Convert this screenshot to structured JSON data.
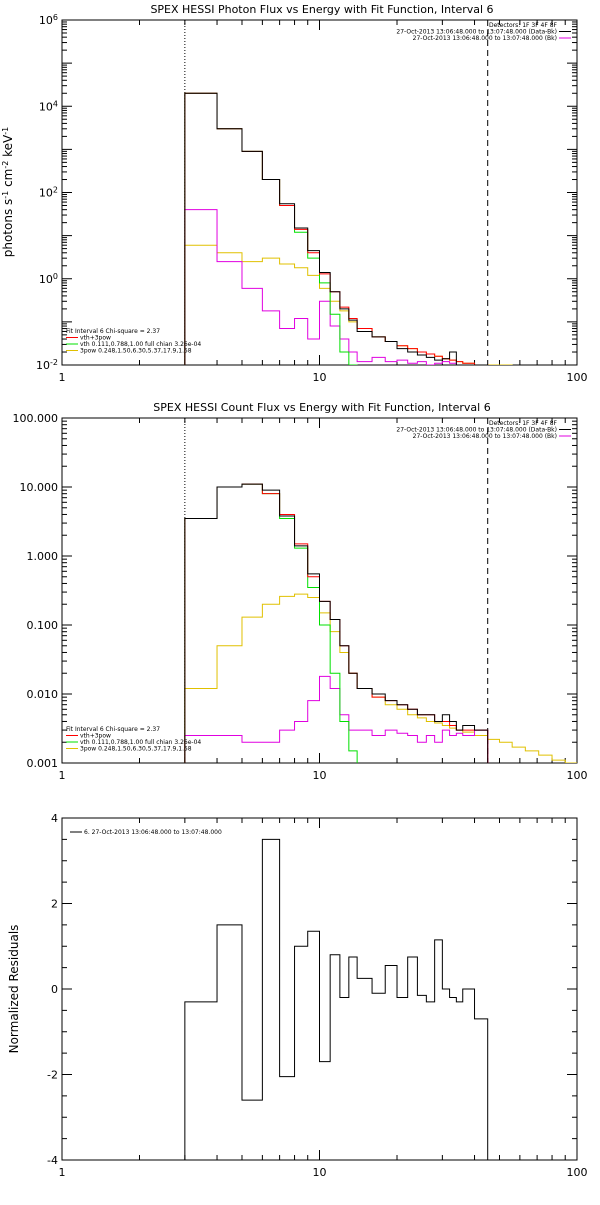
{
  "chart_data": [
    {
      "type": "line",
      "title": "SPEX HESSI Photon Flux vs Energy with Fit Function, Interval 6",
      "ylabel": "photons s$^{-1}$ cm$^{-2}$ keV$^{-1}$",
      "xlabel": "",
      "xscale": "log",
      "yscale": "log",
      "xlim": [
        1,
        100
      ],
      "ylim": [
        0.01,
        1000000
      ],
      "x_ticks": [
        "1",
        "10",
        "100"
      ],
      "y_ticks": [
        "10$^{-2}$",
        "10$^{0}$",
        "10$^{2}$",
        "10$^{4}$",
        "10$^{6}$"
      ],
      "y_tick_values": [
        0.01,
        1,
        100,
        10000,
        1000000
      ],
      "vlines": [
        {
          "x": 3,
          "style": "dotted"
        },
        {
          "x": 45,
          "style": "dashed"
        }
      ],
      "legend_top": {
        "lines": [
          "Detectors: 1F 3F 4F 8F",
          "27-Oct-2013 13:06:48.000 to 13:07:48.000 (Data-Bk)",
          "27-Oct-2013 13:06:48.000 to 13:07:48.000 (Bk)"
        ],
        "colors": [
          "#000000",
          "#000000",
          "#e000e0"
        ]
      },
      "legend_fit": {
        "header": "Fit Interval 6   Chi-square = 2.37",
        "lines": [
          "vth+3pow",
          "vth 0.111,0.788,1.00  full chian 3.26e-04",
          "3pow 0.248,1.50,6.30,5.37,17.9,1.58"
        ],
        "colors": [
          "#ff0000",
          "#00e000",
          "#e0c000"
        ]
      },
      "edges": [
        3,
        4,
        5,
        6,
        7,
        8,
        9,
        10,
        11,
        12,
        13,
        14,
        16,
        18,
        20,
        22,
        24,
        26,
        28,
        30,
        32,
        34,
        36,
        40,
        45,
        50,
        56
      ],
      "series": [
        {
          "name": "vth+3pow",
          "color": "#ff0000",
          "values": [
            20000,
            3000,
            900,
            200,
            50,
            14,
            4,
            1.3,
            0.5,
            0.22,
            0.12,
            0.07,
            0.045,
            0.035,
            0.028,
            0.024,
            0.02,
            0.018,
            0.016,
            0.014,
            0.013,
            0.012,
            0.011,
            0.01,
            null,
            null
          ]
        },
        {
          "name": "Data-Bk",
          "color": "#000000",
          "values": [
            20000,
            3000,
            900,
            200,
            55,
            15,
            4.5,
            1.4,
            0.5,
            0.2,
            0.11,
            0.06,
            0.045,
            0.035,
            0.024,
            0.02,
            0.017,
            0.015,
            0.013,
            0.014,
            0.02,
            0.01,
            0.01,
            0.009,
            null,
            null
          ]
        },
        {
          "name": "vth",
          "color": "#00e000",
          "values": [
            20000,
            3000,
            900,
            200,
            50,
            12,
            3,
            0.8,
            0.15,
            0.02,
            0.005,
            null,
            null,
            null,
            null,
            null,
            null,
            null,
            null,
            null,
            null,
            null,
            null,
            null,
            null,
            null
          ]
        },
        {
          "name": "3pow",
          "color": "#e0c000",
          "values": [
            6,
            4,
            2.5,
            3,
            2.2,
            1.8,
            1.2,
            0.6,
            0.3,
            0.18,
            0.1,
            0.07,
            0.045,
            0.035,
            0.028,
            0.024,
            0.02,
            0.018,
            0.016,
            0.014,
            0.013,
            0.012,
            0.011,
            0.01,
            0.009,
            0.008
          ]
        },
        {
          "name": "Bk",
          "color": "#e000e0",
          "values": [
            40,
            2.5,
            0.6,
            0.18,
            0.07,
            0.12,
            0.04,
            0.3,
            0.08,
            0.04,
            0.02,
            0.012,
            0.015,
            0.012,
            0.013,
            0.011,
            0.012,
            0.01,
            0.011,
            0.012,
            0.011,
            0.009,
            0.008,
            0.01,
            null,
            null
          ]
        }
      ]
    },
    {
      "type": "line",
      "title": "SPEX HESSI Count Flux vs Energy with Fit Function, Interval 6",
      "ylabel": "",
      "xlabel": "",
      "xscale": "log",
      "yscale": "log",
      "xlim": [
        1,
        100
      ],
      "ylim": [
        0.001,
        100
      ],
      "x_ticks": [
        "1",
        "10",
        "100"
      ],
      "y_ticks": [
        "0.001",
        "0.010",
        "0.100",
        "1.000",
        "10.000",
        "100.000"
      ],
      "y_tick_values": [
        0.001,
        0.01,
        0.1,
        1,
        10,
        100
      ],
      "vlines": [
        {
          "x": 3,
          "style": "dotted"
        },
        {
          "x": 45,
          "style": "dashed"
        }
      ],
      "legend_top": {
        "lines": [
          "Detectors: 1F 3F 4F 8F",
          "27-Oct-2013 13:06:48.000 to 13:07:48.000 (Data-Bk)",
          "27-Oct-2013 13:06:48.000 to 13:07:48.000 (Bk)"
        ],
        "colors": [
          "#000000",
          "#000000",
          "#e000e0"
        ]
      },
      "legend_fit": {
        "header": "Fit Interval 6   Chi-square = 2.37",
        "lines": [
          "vth+3pow",
          "vth 0.111,0.788,1.00  full chian 3.26e-04",
          "3pow 0.248,1.50,6.30,5.37,17.9,1.58"
        ],
        "colors": [
          "#ff0000",
          "#00e000",
          "#e0c000"
        ]
      },
      "edges": [
        3,
        4,
        5,
        6,
        7,
        8,
        9,
        10,
        11,
        12,
        13,
        14,
        16,
        18,
        20,
        22,
        24,
        26,
        28,
        30,
        32,
        34,
        36,
        40,
        45,
        50,
        56,
        63,
        71,
        80,
        90,
        100
      ],
      "series": [
        {
          "name": "vth+3pow",
          "color": "#ff0000",
          "values": [
            3.5,
            10,
            11,
            8,
            4,
            1.5,
            0.5,
            0.22,
            0.12,
            0.05,
            0.02,
            0.012,
            0.009,
            0.008,
            0.007,
            0.006,
            0.005,
            0.005,
            0.004,
            0.004,
            0.0035,
            0.003,
            0.003,
            0.003,
            null,
            null,
            null,
            null,
            null,
            null,
            null
          ]
        },
        {
          "name": "Data-Bk",
          "color": "#000000",
          "values": [
            3.5,
            10,
            11,
            9,
            3.8,
            1.4,
            0.55,
            0.22,
            0.12,
            0.05,
            0.02,
            0.012,
            0.01,
            0.008,
            0.007,
            0.006,
            0.005,
            0.005,
            0.004,
            0.005,
            0.004,
            0.003,
            0.0035,
            0.003,
            null,
            null,
            null,
            null,
            null,
            null,
            null
          ]
        },
        {
          "name": "vth",
          "color": "#00e000",
          "values": [
            3.5,
            10,
            11,
            8,
            3.5,
            1.3,
            0.35,
            0.1,
            0.02,
            0.004,
            0.0015,
            null,
            null,
            null,
            null,
            null,
            null,
            null,
            null,
            null,
            null,
            null,
            null,
            null,
            null,
            null,
            null,
            null,
            null,
            null,
            null
          ]
        },
        {
          "name": "3pow",
          "color": "#e0c000",
          "values": [
            0.012,
            0.05,
            0.13,
            0.2,
            0.26,
            0.28,
            0.25,
            0.15,
            0.08,
            0.04,
            0.02,
            0.012,
            0.009,
            0.007,
            0.006,
            0.005,
            0.0045,
            0.004,
            0.0038,
            0.0035,
            0.0032,
            0.003,
            0.0028,
            0.0025,
            0.0022,
            0.002,
            0.0017,
            0.0015,
            0.0013,
            0.0011,
            0.001
          ]
        },
        {
          "name": "Bk",
          "color": "#e000e0",
          "values": [
            0.0025,
            0.0025,
            0.002,
            0.002,
            0.003,
            0.004,
            0.008,
            0.018,
            0.012,
            0.005,
            0.003,
            0.003,
            0.0025,
            0.003,
            0.0027,
            0.0025,
            0.002,
            0.0025,
            0.002,
            0.003,
            0.0025,
            0.0027,
            0.0025,
            0.003,
            null,
            null,
            null,
            null,
            null,
            null,
            null
          ]
        }
      ]
    },
    {
      "type": "line",
      "title": "",
      "ylabel": "Normalized Residuals",
      "xlabel": "",
      "xscale": "log",
      "yscale": "linear",
      "xlim": [
        1,
        100
      ],
      "ylim": [
        -4,
        4
      ],
      "x_ticks": [
        "1",
        "10",
        "100"
      ],
      "y_ticks": [
        "-4",
        "-2",
        "0",
        "2",
        "4"
      ],
      "y_tick_values": [
        -4,
        -2,
        0,
        2,
        4
      ],
      "legend_top": {
        "lines": [
          "6. 27-Oct-2013 13:06:48.000 to 13:07:48.000"
        ],
        "colors": [
          "#000000"
        ]
      },
      "edges": [
        3,
        4,
        5,
        6,
        7,
        8,
        9,
        10,
        11,
        12,
        13,
        14,
        16,
        18,
        20,
        22,
        24,
        26,
        28,
        30,
        32,
        34,
        36,
        40,
        45
      ],
      "series": [
        {
          "name": "",
          "color": "#000000",
          "values": [
            -0.3,
            1.5,
            -2.6,
            3.5,
            -2.05,
            1.0,
            1.35,
            -1.7,
            0.8,
            -0.2,
            0.75,
            0.25,
            -0.1,
            0.55,
            -0.2,
            0.75,
            -0.15,
            -0.3,
            1.15,
            0.0,
            -0.2,
            -0.3,
            0.0,
            -0.7
          ]
        }
      ]
    }
  ]
}
